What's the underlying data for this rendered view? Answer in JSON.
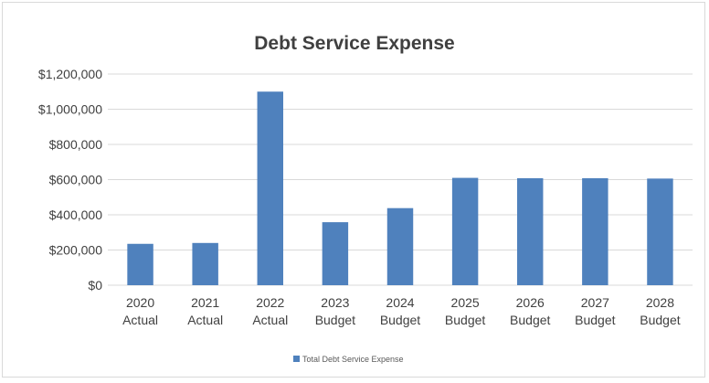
{
  "chart_data": {
    "type": "bar",
    "title": "Debt Service Expense",
    "categories": [
      [
        "2020",
        "Actual"
      ],
      [
        "2021",
        "Actual"
      ],
      [
        "2022",
        "Actual"
      ],
      [
        "2023",
        "Budget"
      ],
      [
        "2024",
        "Budget"
      ],
      [
        "2025",
        "Budget"
      ],
      [
        "2026",
        "Budget"
      ],
      [
        "2027",
        "Budget"
      ],
      [
        "2028",
        "Budget"
      ]
    ],
    "series": [
      {
        "name": "Total Debt Service Expense",
        "color": "#4f81bd",
        "values": [
          235000,
          240000,
          1100000,
          358000,
          438000,
          610000,
          608000,
          608000,
          606000
        ]
      }
    ],
    "ylim": [
      0,
      1200000
    ],
    "yticks": [
      0,
      200000,
      400000,
      600000,
      800000,
      1000000,
      1200000
    ],
    "ytick_labels": [
      "$0",
      "$200,000",
      "$400,000",
      "$600,000",
      "$800,000",
      "$1,000,000",
      "$1,200,000"
    ],
    "grid": true,
    "legend_position": "bottom",
    "xlabel": "",
    "ylabel": ""
  }
}
